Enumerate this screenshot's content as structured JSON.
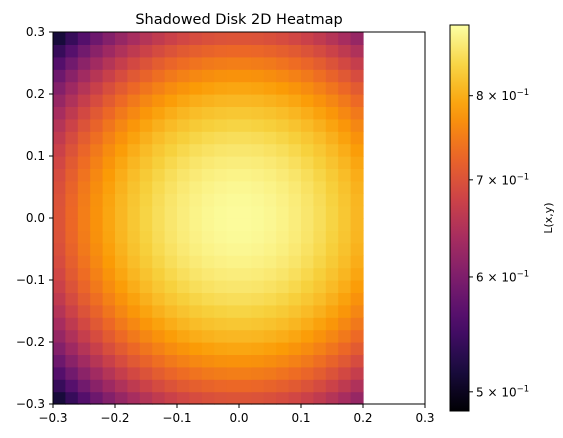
{
  "chart_data": {
    "type": "heatmap",
    "title": "Shadowed Disk 2D Heatmap",
    "xlabel": "",
    "ylabel": "",
    "xlim": [
      -0.3,
      0.3
    ],
    "ylim": [
      -0.3,
      0.3
    ],
    "x_ticks": [
      -0.3,
      -0.2,
      -0.1,
      0.0,
      0.1,
      0.2,
      0.3
    ],
    "x_tick_labels": [
      "−0.3",
      "−0.2",
      "−0.1",
      "0.0",
      "0.1",
      "0.2",
      "0.3"
    ],
    "y_ticks": [
      -0.3,
      -0.2,
      -0.1,
      0.0,
      0.1,
      0.2,
      0.3
    ],
    "y_tick_labels": [
      "−0.3",
      "−0.2",
      "−0.1",
      "0.0",
      "0.1",
      "0.2",
      "0.3"
    ],
    "grid": false,
    "data_extent": {
      "x": [
        -0.3,
        0.2
      ],
      "y": [
        -0.3,
        0.3
      ]
    },
    "grid_size": {
      "nx": 25,
      "ny": 30
    },
    "field": {
      "center": [
        0.0,
        0.0
      ],
      "peak": 0.89,
      "edge_min": 0.49,
      "falloff_radius": 0.424
    },
    "colormap": "inferno",
    "colormap_stops": [
      "#000004",
      "#1b0c41",
      "#4a0c6b",
      "#781c6d",
      "#a52c60",
      "#cf4446",
      "#ed6925",
      "#fb9b06",
      "#f7d13d",
      "#fcffa4"
    ],
    "colorbar": {
      "label": "L(x,y)",
      "scale": "log",
      "vmin": 0.485,
      "vmax": 0.895,
      "ticks": [
        {
          "value": 0.8,
          "mantissa": "8",
          "base": "10",
          "exponent": "−1"
        },
        {
          "value": 0.7,
          "mantissa": "7",
          "base": "10",
          "exponent": "−1"
        },
        {
          "value": 0.6,
          "mantissa": "6",
          "base": "10",
          "exponent": "−1"
        },
        {
          "value": 0.5,
          "mantissa": "5",
          "base": "10",
          "exponent": "−1"
        }
      ]
    }
  }
}
